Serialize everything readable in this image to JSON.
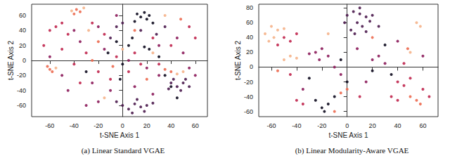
{
  "chart_data": [
    {
      "type": "scatter",
      "title": "(a) Linear Standard VGAE",
      "xlabel": "t-SNE Axis 1",
      "ylabel": "t-SNE Axis 2",
      "xlim": [
        -75,
        70
      ],
      "xticks": [
        -60,
        -40,
        -20,
        0,
        20,
        40,
        60
      ],
      "ylim": [
        -75,
        75
      ],
      "yticks": [
        -60,
        -40,
        -20,
        0,
        20,
        40,
        60
      ],
      "series": [
        {
          "color": "#0d0a1e",
          "values": [
            [
              12,
              62
            ],
            [
              15,
              58
            ],
            [
              18,
              64
            ],
            [
              20,
              55
            ],
            [
              22,
              60
            ],
            [
              10,
              52
            ],
            [
              25,
              50
            ],
            [
              5,
              20
            ],
            [
              18,
              18
            ],
            [
              22,
              15
            ],
            [
              -5,
              25
            ],
            [
              30,
              5
            ],
            [
              -12,
              10
            ],
            [
              35,
              -20
            ],
            [
              40,
              -35
            ],
            [
              -30,
              -15
            ],
            [
              0,
              -5
            ],
            [
              8,
              30
            ],
            [
              45,
              -50
            ],
            [
              -2,
              -25
            ]
          ]
        },
        {
          "color": "#4b1b4e",
          "values": [
            [
              0,
              -60
            ],
            [
              5,
              -65
            ],
            [
              10,
              -58
            ],
            [
              15,
              -62
            ],
            [
              20,
              -60
            ],
            [
              8,
              -70
            ],
            [
              -5,
              -55
            ],
            [
              12,
              -52
            ],
            [
              25,
              -57
            ],
            [
              18,
              -68
            ],
            [
              40,
              -30
            ],
            [
              45,
              -35
            ],
            [
              50,
              -30
            ],
            [
              48,
              -40
            ],
            [
              42,
              -25
            ],
            [
              55,
              -35
            ],
            [
              38,
              -38
            ],
            [
              52,
              -25
            ],
            [
              -5,
              45
            ],
            [
              0,
              50
            ],
            [
              28,
              35
            ],
            [
              35,
              45
            ],
            [
              15,
              40
            ],
            [
              -10,
              30
            ]
          ]
        },
        {
          "color": "#8c1c5b",
          "values": [
            [
              -30,
              -60
            ],
            [
              -20,
              -55
            ],
            [
              -45,
              -40
            ],
            [
              -25,
              -30
            ],
            [
              -10,
              -40
            ],
            [
              10,
              -35
            ],
            [
              25,
              -45
            ],
            [
              30,
              -20
            ],
            [
              55,
              -10
            ],
            [
              60,
              -20
            ],
            [
              50,
              10
            ],
            [
              30,
              20
            ],
            [
              -35,
              25
            ],
            [
              -40,
              40
            ],
            [
              -20,
              45
            ],
            [
              -5,
              60
            ],
            [
              -15,
              15
            ],
            [
              5,
              0
            ],
            [
              20,
              -10
            ],
            [
              -60,
              5
            ],
            [
              -50,
              -20
            ],
            [
              45,
              30
            ]
          ]
        },
        {
          "color": "#c0264e",
          "values": [
            [
              -55,
              45
            ],
            [
              -50,
              50
            ],
            [
              -60,
              40
            ],
            [
              -45,
              35
            ],
            [
              -25,
              50
            ],
            [
              -15,
              35
            ],
            [
              -30,
              10
            ],
            [
              -5,
              5
            ],
            [
              10,
              10
            ],
            [
              15,
              -5
            ],
            [
              -20,
              -15
            ],
            [
              -40,
              -5
            ],
            [
              -35,
              -30
            ],
            [
              25,
              30
            ],
            [
              40,
              20
            ],
            [
              60,
              30
            ],
            [
              55,
              45
            ],
            [
              30,
              -5
            ],
            [
              -65,
              20
            ],
            [
              -10,
              -25
            ],
            [
              5,
              -15
            ],
            [
              -50,
              15
            ]
          ]
        },
        {
          "color": "#ec6a50",
          "values": [
            [
              -38,
              68
            ],
            [
              -35,
              65
            ],
            [
              -40,
              62
            ],
            [
              -60,
              -12
            ],
            [
              -62,
              -8
            ],
            [
              -58,
              -15
            ],
            [
              35,
              -12
            ],
            [
              40,
              -15
            ],
            [
              -25,
              0
            ],
            [
              10,
              40
            ],
            [
              -8,
              -8
            ],
            [
              48,
              55
            ],
            [
              -20,
              25
            ],
            [
              20,
              -25
            ]
          ]
        },
        {
          "color": "#f5b38a",
          "values": [
            [
              -42,
              66
            ],
            [
              -32,
              70
            ],
            [
              45,
              -18
            ],
            [
              50,
              -15
            ],
            [
              -55,
              -10
            ],
            [
              0,
              15
            ],
            [
              25,
              10
            ],
            [
              -15,
              -50
            ],
            [
              35,
              60
            ],
            [
              -28,
              40
            ]
          ]
        }
      ]
    },
    {
      "type": "scatter",
      "title": "(b) Linear Modularity-Aware VGAE",
      "xlabel": "t-SNE Axis 1",
      "ylabel": "t-SNE Axis 2",
      "xlim": [
        -70,
        72
      ],
      "xticks": [
        -60,
        -40,
        -20,
        0,
        20,
        40,
        60
      ],
      "ylim": [
        -67,
        85
      ],
      "yticks": [
        -60,
        -40,
        -20,
        0,
        20,
        40,
        60,
        80
      ],
      "series": [
        {
          "color": "#4b1b4e",
          "values": [
            [
              0,
              70
            ],
            [
              5,
              75
            ],
            [
              10,
              72
            ],
            [
              15,
              68
            ],
            [
              8,
              60
            ],
            [
              12,
              55
            ],
            [
              3,
              50
            ],
            [
              18,
              62
            ],
            [
              20,
              70
            ],
            [
              -2,
              60
            ],
            [
              6,
              45
            ],
            [
              15,
              48
            ],
            [
              25,
              55
            ],
            [
              10,
              80
            ]
          ]
        },
        {
          "color": "#0d0a1e",
          "values": [
            [
              -20,
              -55
            ],
            [
              -15,
              -50
            ],
            [
              -25,
              -45
            ],
            [
              -18,
              -60
            ],
            [
              -10,
              -40
            ],
            [
              30,
              30
            ],
            [
              35,
              -10
            ],
            [
              -5,
              10
            ],
            [
              -30,
              -15
            ],
            [
              0,
              -20
            ],
            [
              20,
              -5
            ]
          ]
        },
        {
          "color": "#8c1c5b",
          "values": [
            [
              -25,
              20
            ],
            [
              -20,
              25
            ],
            [
              -30,
              18
            ],
            [
              -15,
              15
            ],
            [
              -22,
              10
            ],
            [
              20,
              10
            ],
            [
              25,
              15
            ],
            [
              30,
              5
            ],
            [
              -10,
              0
            ],
            [
              15,
              -20
            ],
            [
              -35,
              -30
            ],
            [
              40,
              35
            ],
            [
              60,
              15
            ],
            [
              -5,
              -10
            ],
            [
              8,
              25
            ]
          ]
        },
        {
          "color": "#c0264e",
          "values": [
            [
              -50,
              40
            ],
            [
              -45,
              35
            ],
            [
              -40,
              45
            ],
            [
              -55,
              30
            ],
            [
              40,
              -20
            ],
            [
              45,
              -25
            ],
            [
              50,
              -15
            ],
            [
              35,
              -40
            ],
            [
              40,
              -45
            ],
            [
              60,
              -30
            ],
            [
              65,
              -40
            ],
            [
              45,
              5
            ],
            [
              -40,
              -45
            ],
            [
              -35,
              -50
            ],
            [
              10,
              -40
            ],
            [
              -45,
              -10
            ]
          ]
        },
        {
          "color": "#ec6a50",
          "values": [
            [
              50,
              -40
            ],
            [
              55,
              -45
            ],
            [
              58,
              -50
            ],
            [
              -5,
              -35
            ],
            [
              -10,
              -60
            ],
            [
              0,
              -30
            ],
            [
              -55,
              -5
            ],
            [
              20,
              40
            ],
            [
              48,
              25
            ]
          ]
        },
        {
          "color": "#f5b38a",
          "values": [
            [
              -60,
              55
            ],
            [
              -55,
              50
            ],
            [
              -65,
              45
            ],
            [
              -58,
              40
            ],
            [
              -50,
              52
            ],
            [
              -62,
              35
            ],
            [
              -45,
              15
            ],
            [
              -50,
              10
            ],
            [
              -40,
              12
            ],
            [
              55,
              60
            ],
            [
              58,
              55
            ],
            [
              -15,
              45
            ],
            [
              50,
              20
            ]
          ]
        }
      ]
    }
  ]
}
